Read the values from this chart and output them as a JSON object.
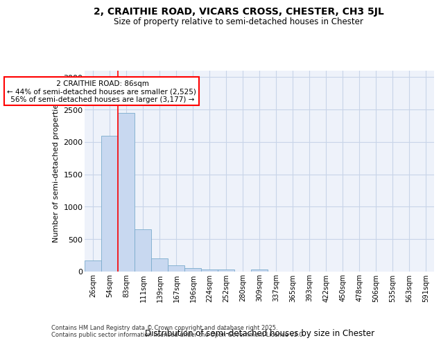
{
  "title_line1": "2, CRAITHIE ROAD, VICARS CROSS, CHESTER, CH3 5JL",
  "title_line2": "Size of property relative to semi-detached houses in Chester",
  "xlabel": "Distribution of semi-detached houses by size in Chester",
  "ylabel": "Number of semi-detached properties",
  "categories": [
    "26sqm",
    "54sqm",
    "83sqm",
    "111sqm",
    "139sqm",
    "167sqm",
    "196sqm",
    "224sqm",
    "252sqm",
    "280sqm",
    "309sqm",
    "337sqm",
    "365sqm",
    "393sqm",
    "422sqm",
    "450sqm",
    "478sqm",
    "506sqm",
    "535sqm",
    "563sqm",
    "591sqm"
  ],
  "values": [
    175,
    2100,
    2450,
    650,
    200,
    100,
    50,
    35,
    30,
    0,
    30,
    0,
    0,
    0,
    0,
    0,
    0,
    0,
    0,
    0,
    0
  ],
  "bar_color": "#c8d8f0",
  "bar_edge_color": "#7aabcc",
  "property_line_idx": 2,
  "property_label": "2 CRAITHIE ROAD: 86sqm",
  "pct_smaller": 44,
  "n_smaller": 2525,
  "pct_larger": 56,
  "n_larger": 3177,
  "annotation_box_color": "#cc0000",
  "ylim": [
    0,
    3100
  ],
  "yticks": [
    0,
    500,
    1000,
    1500,
    2000,
    2500,
    3000
  ],
  "grid_color": "#c8d4e8",
  "bg_color": "#eef2fa",
  "footnote_line1": "Contains HM Land Registry data © Crown copyright and database right 2025.",
  "footnote_line2": "Contains public sector information licensed under the Open Government Licence v3.0."
}
